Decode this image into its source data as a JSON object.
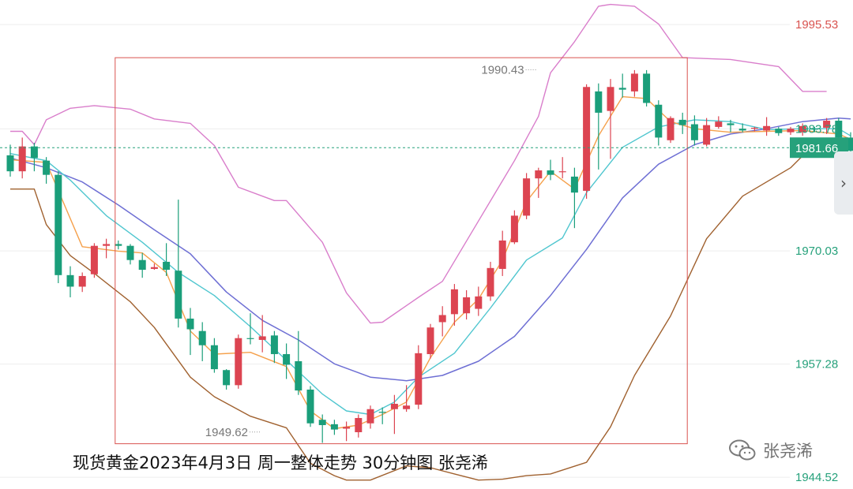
{
  "caption": "现货黄金2023年4月3日 周一整体走势 30分钟图 张尧浠",
  "watermark": {
    "text": "张尧浠",
    "logo": "wechat-logo-icon"
  },
  "side_toggle": {
    "icon": "chevron-right-icon",
    "glyph": "›"
  },
  "chart_data": {
    "type": "candlestick",
    "title": "",
    "xlabel": "",
    "ylabel": "",
    "ylim": [
      1943.2,
      1998.3
    ],
    "y_ticks": [
      {
        "value": 1995.53,
        "label": "1995.53",
        "color": "#d9534f"
      },
      {
        "value": 1983.78,
        "label": "1983.78",
        "color": "#26a17b"
      },
      {
        "value": 1970.03,
        "label": "1970.03",
        "color": "#26a17b"
      },
      {
        "value": 1957.28,
        "label": "1957.28",
        "color": "#26a17b"
      },
      {
        "value": 1944.52,
        "label": "1944.52",
        "color": "#26a17b"
      }
    ],
    "current_price": {
      "value": 1981.66,
      "label": "1981.66"
    },
    "annotations": [
      {
        "label": "1990.43",
        "value": 1990.43,
        "bar": 43
      },
      {
        "label": "1949.62",
        "value": 1949.62,
        "bar": 20
      }
    ],
    "highlight_box": {
      "from_bar": 9,
      "to_bar": 56,
      "top": 1991.8,
      "bottom": 1948.3,
      "color": "#d9534f"
    },
    "colors": {
      "up": "#dc4451",
      "down": "#1a9e7a",
      "ma_fast": "#f5a04b",
      "ma_mid": "#4fc6cf",
      "ma_slow": "#6e6fd4",
      "boll_upper": "#d97ecb",
      "boll_lower": "#a0612f"
    },
    "candles": [
      [
        1980.8,
        1982.0,
        1978.4,
        1979.0
      ],
      [
        1979.0,
        1982.8,
        1978.2,
        1981.8
      ],
      [
        1981.8,
        1982.2,
        1979.0,
        1980.5
      ],
      [
        1980.2,
        1980.6,
        1977.6,
        1978.6
      ],
      [
        1978.6,
        1979.0,
        1966.4,
        1967.3
      ],
      [
        1967.3,
        1968.3,
        1964.8,
        1966.0
      ],
      [
        1966.0,
        1967.6,
        1965.4,
        1967.2
      ],
      [
        1967.4,
        1970.9,
        1967.0,
        1970.6
      ],
      [
        1970.6,
        1971.4,
        1969.2,
        1970.8
      ],
      [
        1970.8,
        1971.2,
        1970.2,
        1970.6
      ],
      [
        1970.6,
        1970.8,
        1968.5,
        1969.0
      ],
      [
        1969.0,
        1969.8,
        1967.0,
        1967.9
      ],
      [
        1968.0,
        1968.6,
        1967.9,
        1968.2
      ],
      [
        1968.8,
        1970.9,
        1967.2,
        1967.9
      ],
      [
        1967.8,
        1975.8,
        1961.4,
        1962.4
      ],
      [
        1962.4,
        1963.6,
        1958.3,
        1961.2
      ],
      [
        1961.0,
        1962.0,
        1957.6,
        1959.4
      ],
      [
        1959.4,
        1960.2,
        1956.3,
        1956.7
      ],
      [
        1956.6,
        1956.7,
        1954.4,
        1954.9
      ],
      [
        1954.9,
        1960.6,
        1954.5,
        1960.2
      ],
      [
        1960.2,
        1963.0,
        1959.5,
        1960.1
      ],
      [
        1960.0,
        1962.8,
        1958.6,
        1960.4
      ],
      [
        1960.5,
        1961.0,
        1957.4,
        1958.4
      ],
      [
        1958.4,
        1959.6,
        1955.6,
        1957.2
      ],
      [
        1957.6,
        1961.0,
        1953.8,
        1954.3
      ],
      [
        1954.4,
        1954.8,
        1950.2,
        1950.6
      ],
      [
        1951.0,
        1951.6,
        1948.4,
        1950.4
      ],
      [
        1950.5,
        1951.0,
        1949.3,
        1949.9
      ],
      [
        1950.0,
        1950.8,
        1948.6,
        1950.2
      ],
      [
        1949.6,
        1951.6,
        1949.0,
        1951.2
      ],
      [
        1950.6,
        1952.6,
        1950.0,
        1952.2
      ],
      [
        1951.9,
        1952.4,
        1950.5,
        1951.8
      ],
      [
        1952.2,
        1953.8,
        1949.4,
        1952.8
      ],
      [
        1952.2,
        1954.9,
        1951.9,
        1952.6
      ],
      [
        1952.7,
        1959.4,
        1952.2,
        1958.5
      ],
      [
        1958.4,
        1961.8,
        1957.9,
        1961.4
      ],
      [
        1962.0,
        1963.8,
        1960.4,
        1962.8
      ],
      [
        1962.9,
        1966.3,
        1961.6,
        1965.7
      ],
      [
        1963.0,
        1965.6,
        1962.3,
        1964.8
      ],
      [
        1963.5,
        1966.0,
        1962.7,
        1964.9
      ],
      [
        1964.9,
        1968.8,
        1964.4,
        1968.1
      ],
      [
        1968.0,
        1972.3,
        1967.2,
        1971.2
      ],
      [
        1971.0,
        1974.6,
        1970.8,
        1974.0
      ],
      [
        1974.0,
        1978.8,
        1973.6,
        1978.2
      ],
      [
        1978.2,
        1979.4,
        1976.0,
        1979.1
      ],
      [
        1979.1,
        1980.3,
        1978.0,
        1978.6
      ],
      [
        1978.9,
        1980.6,
        1978.2,
        1979.0
      ],
      [
        1978.4,
        1979.4,
        1972.6,
        1976.6
      ],
      [
        1976.8,
        1988.8,
        1975.9,
        1988.5
      ],
      [
        1988.0,
        1988.9,
        1979.2,
        1985.6
      ],
      [
        1985.8,
        1989.4,
        1980.4,
        1988.5
      ],
      [
        1988.4,
        1990.0,
        1987.3,
        1988.2
      ],
      [
        1988.0,
        1990.4,
        1987.4,
        1990.0
      ],
      [
        1990.0,
        1990.4,
        1986.3,
        1986.7
      ],
      [
        1986.5,
        1987.0,
        1981.9,
        1982.8
      ],
      [
        1982.5,
        1985.2,
        1982.2,
        1985.0
      ],
      [
        1984.8,
        1985.6,
        1983.2,
        1984.2
      ],
      [
        1984.3,
        1985.3,
        1981.9,
        1982.5
      ],
      [
        1982.0,
        1985.0,
        1981.8,
        1984.2
      ],
      [
        1984.0,
        1985.2,
        1983.8,
        1984.6
      ],
      [
        1984.4,
        1984.8,
        1983.4,
        1984.2
      ],
      [
        1983.8,
        1984.4,
        1983.4,
        1983.6
      ],
      [
        1983.8,
        1984.0,
        1983.5,
        1983.9
      ],
      [
        1983.6,
        1985.1,
        1983.0,
        1984.1
      ],
      [
        1983.8,
        1984.0,
        1983.0,
        1983.3
      ],
      [
        1983.4,
        1984.0,
        1983.1,
        1983.8
      ],
      [
        1983.4,
        1984.4,
        1983.0,
        1984.1
      ],
      [
        1983.8,
        1984.0,
        1983.4,
        1983.7
      ],
      [
        1983.9,
        1985.0,
        1983.2,
        1984.7
      ],
      [
        1984.7,
        1985.0,
        1982.0,
        1982.8
      ],
      [
        1982.8,
        1983.4,
        1980.5,
        1981.3
      ]
    ],
    "ma_fast": [
      [
        0,
        1980.3
      ],
      [
        3,
        1980.0
      ],
      [
        6,
        1970.5
      ],
      [
        9,
        1970.0
      ],
      [
        11,
        1969.8
      ],
      [
        13,
        1967.6
      ],
      [
        15,
        1961.0
      ],
      [
        17,
        1958.4
      ],
      [
        20,
        1958.6
      ],
      [
        23,
        1957.0
      ],
      [
        25,
        1952.0
      ],
      [
        27,
        1950.0
      ],
      [
        29,
        1950.4
      ],
      [
        31,
        1951.6
      ],
      [
        33,
        1953.0
      ],
      [
        35,
        1958.0
      ],
      [
        37,
        1962.0
      ],
      [
        39,
        1964.6
      ],
      [
        41,
        1969.0
      ],
      [
        43,
        1975.6
      ],
      [
        45,
        1979.0
      ],
      [
        47,
        1977.0
      ],
      [
        49,
        1983.0
      ],
      [
        51,
        1987.4
      ],
      [
        53,
        1987.2
      ],
      [
        55,
        1984.6
      ],
      [
        57,
        1983.8
      ],
      [
        60,
        1983.4
      ],
      [
        63,
        1983.5
      ],
      [
        66,
        1983.6
      ],
      [
        69,
        1983.2
      ],
      [
        70,
        1982.6
      ]
    ],
    "ma_mid": [
      [
        0,
        1981.0
      ],
      [
        3,
        1980.2
      ],
      [
        5,
        1978.0
      ],
      [
        8,
        1974.0
      ],
      [
        11,
        1971.0
      ],
      [
        14,
        1967.6
      ],
      [
        17,
        1965.0
      ],
      [
        20,
        1961.5
      ],
      [
        23,
        1957.7
      ],
      [
        26,
        1953.9
      ],
      [
        28,
        1952.0
      ],
      [
        30,
        1951.6
      ],
      [
        32,
        1953.0
      ],
      [
        34,
        1955.8
      ],
      [
        37,
        1958.5
      ],
      [
        40,
        1963.6
      ],
      [
        43,
        1969.0
      ],
      [
        46,
        1971.5
      ],
      [
        48,
        1976.6
      ],
      [
        51,
        1981.7
      ],
      [
        54,
        1984.0
      ],
      [
        57,
        1984.8
      ],
      [
        60,
        1984.6
      ],
      [
        63,
        1983.7
      ],
      [
        66,
        1983.8
      ],
      [
        69,
        1983.8
      ],
      [
        70,
        1983.0
      ]
    ],
    "ma_slow": [
      [
        0,
        1980.5
      ],
      [
        3,
        1979.4
      ],
      [
        6,
        1977.8
      ],
      [
        9,
        1975.2
      ],
      [
        12,
        1972.4
      ],
      [
        15,
        1969.7
      ],
      [
        18,
        1965.4
      ],
      [
        21,
        1962.2
      ],
      [
        24,
        1960.0
      ],
      [
        27,
        1957.3
      ],
      [
        30,
        1955.8
      ],
      [
        33,
        1955.4
      ],
      [
        36,
        1956.0
      ],
      [
        39,
        1957.6
      ],
      [
        42,
        1960.4
      ],
      [
        45,
        1965.0
      ],
      [
        48,
        1970.2
      ],
      [
        51,
        1976.0
      ],
      [
        54,
        1979.8
      ],
      [
        57,
        1982.0
      ],
      [
        60,
        1983.2
      ],
      [
        63,
        1983.8
      ],
      [
        66,
        1984.6
      ],
      [
        69,
        1985.0
      ],
      [
        70,
        1984.9
      ]
    ],
    "boll_upper": [
      [
        0,
        1983.5
      ],
      [
        1,
        1983.5
      ],
      [
        2,
        1982.0
      ],
      [
        3,
        1984.8
      ],
      [
        5,
        1986.1
      ],
      [
        7,
        1986.4
      ],
      [
        10,
        1986.0
      ],
      [
        12,
        1984.9
      ],
      [
        15,
        1984.4
      ],
      [
        17,
        1981.9
      ],
      [
        19,
        1977.2
      ],
      [
        21,
        1976.2
      ],
      [
        22,
        1975.7
      ],
      [
        23,
        1975.7
      ],
      [
        26,
        1971.0
      ],
      [
        28,
        1965.3
      ],
      [
        30,
        1961.9
      ],
      [
        31,
        1962.0
      ],
      [
        34,
        1964.8
      ],
      [
        36,
        1966.6
      ],
      [
        39,
        1973.4
      ],
      [
        42,
        1980.2
      ],
      [
        44,
        1985.2
      ],
      [
        45,
        1990.1
      ],
      [
        47,
        1993.6
      ],
      [
        49,
        1997.6
      ],
      [
        50,
        1997.8
      ],
      [
        52,
        1997.6
      ],
      [
        54,
        1995.6
      ],
      [
        56,
        1991.8
      ],
      [
        60,
        1991.6
      ],
      [
        64,
        1990.8
      ],
      [
        66,
        1988.0
      ],
      [
        68,
        1988.0
      ]
    ],
    "boll_lower": [
      [
        0,
        1977.0
      ],
      [
        2,
        1977.0
      ],
      [
        3,
        1973.0
      ],
      [
        5,
        1969.5
      ],
      [
        7,
        1967.5
      ],
      [
        10,
        1964.3
      ],
      [
        12,
        1961.4
      ],
      [
        15,
        1955.8
      ],
      [
        17,
        1953.6
      ],
      [
        20,
        1951.4
      ],
      [
        23,
        1950.1
      ],
      [
        25,
        1946.1
      ],
      [
        27,
        1944.7
      ],
      [
        28,
        1944.2
      ],
      [
        30,
        1944.2
      ],
      [
        33,
        1945.8
      ],
      [
        35,
        1945.6
      ],
      [
        37,
        1944.9
      ],
      [
        39,
        1944.2
      ],
      [
        41,
        1944.3
      ],
      [
        43,
        1944.7
      ],
      [
        45,
        1944.9
      ],
      [
        48,
        1946.2
      ],
      [
        50,
        1950.2
      ],
      [
        52,
        1956.0
      ],
      [
        55,
        1962.7
      ],
      [
        58,
        1971.4
      ],
      [
        61,
        1976.2
      ],
      [
        63,
        1977.8
      ],
      [
        65,
        1979.4
      ],
      [
        67,
        1982.1
      ],
      [
        68,
        1981.6
      ],
      [
        70,
        1981.0
      ]
    ]
  }
}
